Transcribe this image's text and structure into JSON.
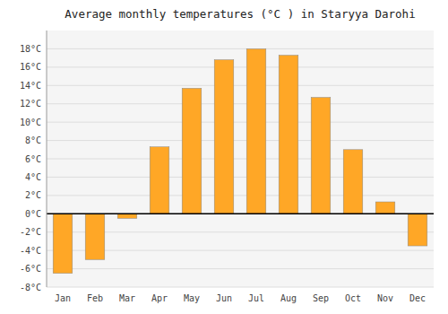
{
  "chart_data": {
    "type": "bar",
    "title": "Average monthly temperatures (°C ) in Staryya Darohi",
    "categories": [
      "Jan",
      "Feb",
      "Mar",
      "Apr",
      "May",
      "Jun",
      "Jul",
      "Aug",
      "Sep",
      "Oct",
      "Nov",
      "Dec"
    ],
    "values": [
      -6.5,
      -5.0,
      -0.5,
      7.3,
      13.7,
      16.8,
      18.0,
      17.3,
      12.7,
      7.0,
      1.3,
      -3.5
    ],
    "color": "#FFA726",
    "ylim": [
      -8,
      20
    ],
    "yticks": [
      {
        "value": -8,
        "label": "-8°C"
      },
      {
        "value": -6,
        "label": "-6°C"
      },
      {
        "value": -4,
        "label": "-4°C"
      },
      {
        "value": -2,
        "label": "-2°C"
      },
      {
        "value": 0,
        "label": "0°C"
      },
      {
        "value": 2,
        "label": "2°C"
      },
      {
        "value": 4,
        "label": "4°C"
      },
      {
        "value": 6,
        "label": "6°C"
      },
      {
        "value": 8,
        "label": "8°C"
      },
      {
        "value": 10,
        "label": "10°C"
      },
      {
        "value": 12,
        "label": "12°C"
      },
      {
        "value": 14,
        "label": "14°C"
      },
      {
        "value": 16,
        "label": "16°C"
      },
      {
        "value": 18,
        "label": "18°C"
      }
    ],
    "grid": true
  }
}
